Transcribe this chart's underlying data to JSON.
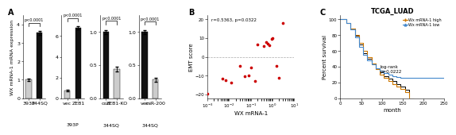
{
  "panel_A": {
    "bar_groups": [
      {
        "x_labels": [
          "393P",
          "344SQ"
        ],
        "values": [
          1.0,
          3.55
        ],
        "errors": [
          0.05,
          0.1
        ],
        "colors": [
          "#cccccc",
          "#111111"
        ],
        "ylim": [
          0,
          4.5
        ],
        "yticks": [
          0,
          1,
          2,
          3,
          4
        ],
        "pvalue": "p<0.0001",
        "group_label": ""
      },
      {
        "x_labels": [
          "vec",
          "ZEB1"
        ],
        "values": [
          0.75,
          6.8
        ],
        "errors": [
          0.05,
          0.15
        ],
        "colors": [
          "#cccccc",
          "#111111"
        ],
        "ylim": [
          0,
          8
        ],
        "yticks": [
          0,
          2,
          4,
          6
        ],
        "pvalue": "p<0.0001",
        "group_label": "393P"
      },
      {
        "x_labels": [
          "con",
          "ZEB1-KO"
        ],
        "values": [
          1.0,
          0.44
        ],
        "errors": [
          0.03,
          0.04
        ],
        "colors": [
          "#111111",
          "#cccccc"
        ],
        "ylim": [
          0,
          1.25
        ],
        "yticks": [
          0.0,
          0.5,
          1.0
        ],
        "pvalue": "p<0.0001",
        "group_label": "344SQ"
      },
      {
        "x_labels": [
          "vec",
          "miR-200"
        ],
        "values": [
          1.0,
          0.28
        ],
        "errors": [
          0.03,
          0.03
        ],
        "colors": [
          "#111111",
          "#cccccc"
        ],
        "ylim": [
          0,
          1.25
        ],
        "yticks": [
          0.0,
          0.5,
          1.0
        ],
        "pvalue": "p<0.0001",
        "group_label": "344SQ"
      }
    ],
    "ylabel": "WX mRNA-1 mRNA expression"
  },
  "panel_B": {
    "annotation": "r=0.5363, p=0.0322",
    "xlabel": "WX mRNA-1",
    "ylabel": "EMT score",
    "ylim": [
      -22,
      22
    ],
    "yticks": [
      -20,
      -10,
      0,
      10,
      20
    ],
    "scatter_color": "#cc0000",
    "points": [
      [
        0.001,
        -19.5
      ],
      [
        0.005,
        -11.5
      ],
      [
        0.007,
        -12.5
      ],
      [
        0.012,
        -13.5
      ],
      [
        0.03,
        -5.0
      ],
      [
        0.05,
        -10.5
      ],
      [
        0.08,
        -10.0
      ],
      [
        0.1,
        -5.5
      ],
      [
        0.15,
        -13.0
      ],
      [
        0.2,
        6.5
      ],
      [
        0.4,
        5.5
      ],
      [
        0.5,
        8.0
      ],
      [
        0.6,
        7.0
      ],
      [
        0.7,
        6.0
      ],
      [
        0.9,
        9.5
      ],
      [
        1.0,
        10.0
      ],
      [
        1.5,
        -5.0
      ],
      [
        2.0,
        -11.0
      ],
      [
        3.0,
        18.0
      ]
    ]
  },
  "panel_C": {
    "title": "TCGA_LUAD",
    "xlabel": "month",
    "ylabel": "Percent survival",
    "ylim": [
      0,
      105
    ],
    "xlim": [
      0,
      250
    ],
    "yticks": [
      0,
      20,
      40,
      60,
      80,
      100
    ],
    "xticks": [
      0,
      50,
      100,
      150,
      200,
      250
    ],
    "annotation": "log-rank\np=0.0222",
    "legend_entries": [
      "Wx mRNA-1 high",
      "Wx mRNA-1 low"
    ],
    "legend_colors": [
      "#cc7700",
      "#4488cc"
    ],
    "high_survival": {
      "times": [
        0,
        15,
        25,
        35,
        45,
        55,
        65,
        75,
        85,
        95,
        105,
        115,
        125,
        135,
        145,
        155,
        165,
        175
      ],
      "surv": [
        100,
        95,
        88,
        80,
        70,
        60,
        52,
        44,
        37,
        30,
        26,
        22,
        18,
        15,
        12,
        8,
        0,
        0
      ],
      "color": "#cc7700"
    },
    "low_survival": {
      "times": [
        0,
        15,
        25,
        35,
        45,
        55,
        65,
        75,
        85,
        95,
        105,
        115,
        125,
        135,
        145,
        155,
        165,
        175,
        185,
        195,
        210,
        230,
        250
      ],
      "surv": [
        100,
        95,
        87,
        77,
        65,
        55,
        48,
        43,
        38,
        35,
        32,
        30,
        28,
        27,
        26,
        26,
        26,
        26,
        26,
        26,
        26,
        26,
        26
      ],
      "color": "#4488cc"
    },
    "black_line": {
      "times": [
        0,
        15,
        25,
        35,
        45,
        55,
        65,
        75,
        85,
        95,
        105,
        115,
        125,
        135,
        145,
        155,
        165
      ],
      "surv": [
        100,
        95,
        88,
        79,
        68,
        57,
        50,
        44,
        38,
        33,
        28,
        25,
        22,
        18,
        15,
        11,
        8
      ]
    }
  },
  "background_color": "#ffffff",
  "font_size": 5.5
}
